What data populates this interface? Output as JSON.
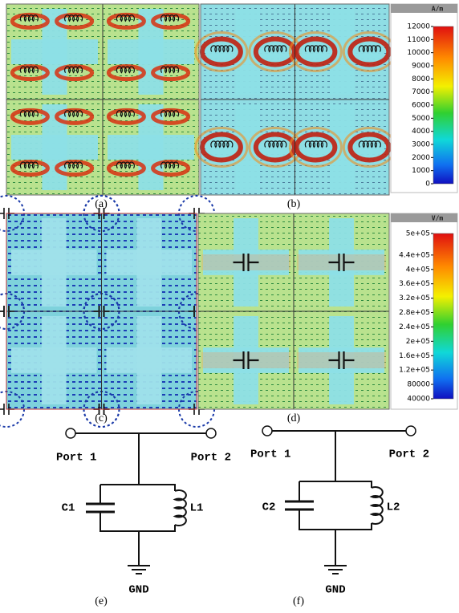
{
  "panel_labels": [
    "(a)",
    "(b)",
    "(c)",
    "(d)",
    "(e)",
    "(f)"
  ],
  "colorbars": [
    {
      "unit": "A/m",
      "range": [
        0,
        12000
      ],
      "ticks": [
        12000,
        11000,
        10000,
        9000,
        8000,
        7000,
        6000,
        5000,
        4000,
        3000,
        2000,
        1000,
        0
      ]
    },
    {
      "unit": "V/m",
      "range": [
        40000,
        500000
      ],
      "ticks": [
        {
          "value": 500000,
          "label": "5e+05"
        },
        {
          "value": 440000,
          "label": "4.4e+05"
        },
        {
          "value": 400000,
          "label": "4e+05"
        },
        {
          "value": 360000,
          "label": "3.6e+05"
        },
        {
          "value": 320000,
          "label": "3.2e+05"
        },
        {
          "value": 280000,
          "label": "2.8e+05"
        },
        {
          "value": 240000,
          "label": "2.4e+05"
        },
        {
          "value": 200000,
          "label": "2e+05"
        },
        {
          "value": 160000,
          "label": "1.6e+05"
        },
        {
          "value": 120000,
          "label": "1.2e+05"
        },
        80000,
        40000
      ]
    }
  ],
  "circuits": [
    {
      "port1": "Port 1",
      "port2": "Port 2",
      "capacitor": "C1",
      "inductor": "L1",
      "ground": "GND"
    },
    {
      "port1": "Port 1",
      "port2": "Port 2",
      "capacitor": "C2",
      "inductor": "L2",
      "ground": "GND"
    }
  ]
}
